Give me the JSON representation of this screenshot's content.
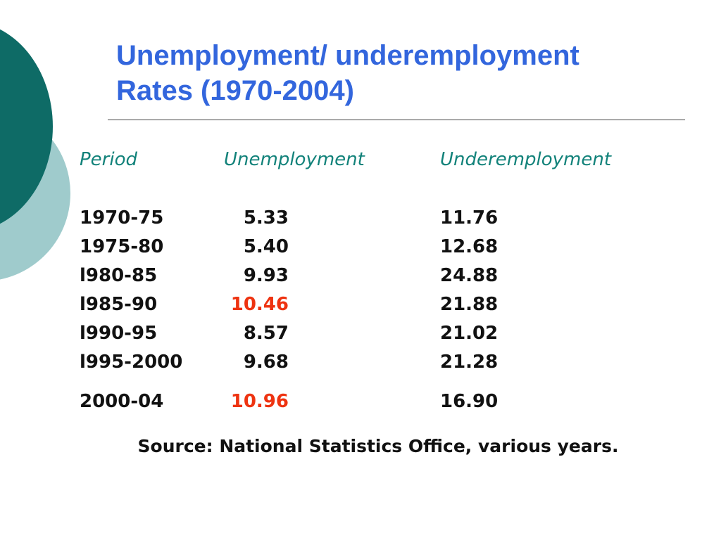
{
  "title": {
    "line1": "Unemployment/ underemployment",
    "line2": "Rates (1970-2004)"
  },
  "table": {
    "headers": {
      "period": "Period",
      "unemployment": "Unemployment",
      "underemployment": "Underemployment"
    },
    "rows": [
      {
        "period": "1970-75",
        "unemployment": "5.33",
        "underemployment": "11.76",
        "highlight": false
      },
      {
        "period": "1975-80",
        "unemployment": "5.40",
        "underemployment": "12.68",
        "highlight": false
      },
      {
        "period": "l980-85",
        "unemployment": "9.93",
        "underemployment": "24.88",
        "highlight": false
      },
      {
        "period": "l985-90",
        "unemployment": "10.46",
        "underemployment": "21.88",
        "highlight": true
      },
      {
        "period": "l990-95",
        "unemployment": "8.57",
        "underemployment": "21.02",
        "highlight": false
      },
      {
        "period": "l995-2000",
        "unemployment": "9.68",
        "underemployment": "21.28",
        "highlight": false
      },
      {
        "period": "2000-04",
        "unemployment": "10.96",
        "underemployment": "16.90",
        "highlight": true
      }
    ]
  },
  "source": "Source: National Statistics Office, various years.",
  "colors": {
    "title": "#3366dd",
    "header": "#12827a",
    "highlight": "#ee3311",
    "deco_dark": "#0e6b66",
    "deco_light": "#9fcbcc"
  }
}
